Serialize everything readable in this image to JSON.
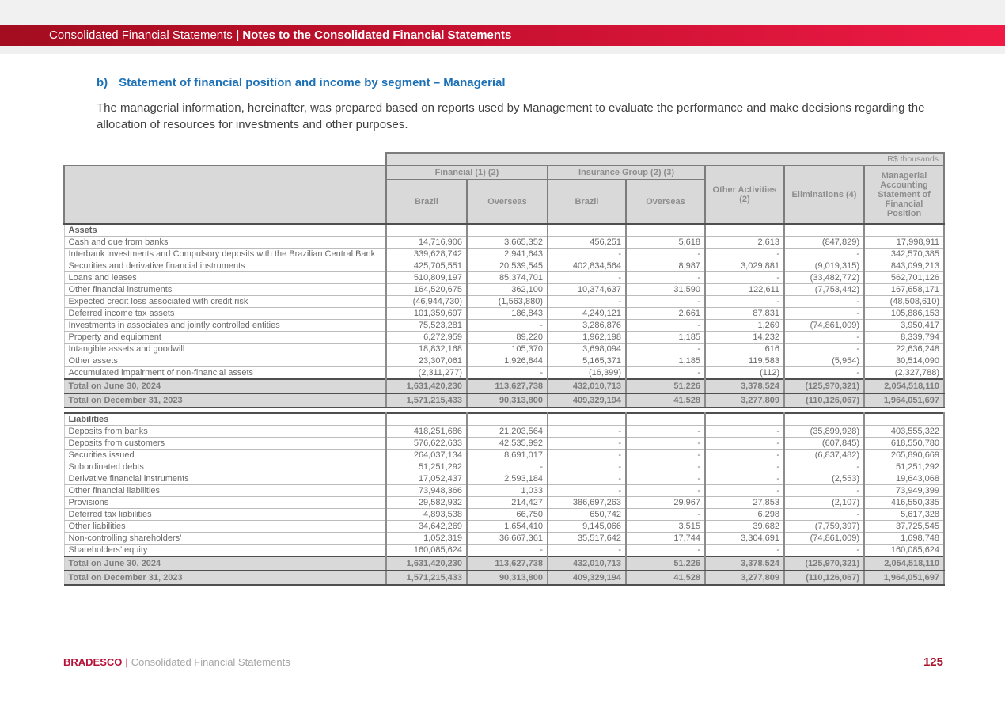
{
  "banner": {
    "left": "Consolidated Financial Statements",
    "separator": "|",
    "right": "Notes to the Consolidated Financial Statements"
  },
  "heading": {
    "prefix": "b)",
    "text": "Statement of financial position and income by segment – Managerial"
  },
  "intro": "The managerial information, hereinafter, was prepared based on reports used by Management to evaluate the performance and make decisions regarding the allocation of resources for investments and other purposes.",
  "table": {
    "units": "R$ thousands",
    "groups": [
      "Financial (1) (2)",
      "Insurance Group (2) (3)"
    ],
    "columns": [
      "Brazil",
      "Overseas",
      "Brazil",
      "Overseas",
      "Other Activities (2)",
      "Eliminations (4)",
      "Managerial Accounting Statement of Financial Position"
    ],
    "sections": [
      {
        "title": "Assets",
        "rows": [
          {
            "label": "Cash and due from banks",
            "values": [
              "14,716,906",
              "3,665,352",
              "456,251",
              "5,618",
              "2,613",
              "(847,829)",
              "17,998,911"
            ]
          },
          {
            "label": "Interbank investments and Compulsory deposits with the Brazilian Central Bank",
            "values": [
              "339,628,742",
              "2,941,643",
              "-",
              "-",
              "-",
              "-",
              "342,570,385"
            ]
          },
          {
            "label": "Securities and derivative financial instruments",
            "values": [
              "425,705,551",
              "20,539,545",
              "402,834,564",
              "8,987",
              "3,029,881",
              "(9,019,315)",
              "843,099,213"
            ]
          },
          {
            "label": "Loans and leases",
            "values": [
              "510,809,197",
              "85,374,701",
              "-",
              "-",
              "-",
              "(33,482,772)",
              "562,701,126"
            ]
          },
          {
            "label": "Other financial instruments",
            "values": [
              "164,520,675",
              "362,100",
              "10,374,637",
              "31,590",
              "122,611",
              "(7,753,442)",
              "167,658,171"
            ]
          },
          {
            "label": "Expected credit loss associated with credit risk",
            "values": [
              "(46,944,730)",
              "(1,563,880)",
              "-",
              "-",
              "-",
              "-",
              "(48,508,610)"
            ]
          },
          {
            "label": "Deferred income tax assets",
            "values": [
              "101,359,697",
              "186,843",
              "4,249,121",
              "2,661",
              "87,831",
              "-",
              "105,886,153"
            ]
          },
          {
            "label": "Investments in associates and jointly controlled entities",
            "values": [
              "75,523,281",
              "-",
              "3,286,876",
              "-",
              "1,269",
              "(74,861,009)",
              "3,950,417"
            ]
          },
          {
            "label": "Property and equipment",
            "values": [
              "6,272,959",
              "89,220",
              "1,962,198",
              "1,185",
              "14,232",
              "-",
              "8,339,794"
            ]
          },
          {
            "label": "Intangible assets and goodwill",
            "values": [
              "18,832,168",
              "105,370",
              "3,698,094",
              "-",
              "616",
              "-",
              "22,636,248"
            ]
          },
          {
            "label": "Other assets",
            "values": [
              "23,307,061",
              "1,926,844",
              "5,165,371",
              "1,185",
              "119,583",
              "(5,954)",
              "30,514,090"
            ]
          },
          {
            "label": "Accumulated impairment of non-financial assets",
            "values": [
              "(2,311,277)",
              "-",
              "(16,399)",
              "-",
              "(112)",
              "-",
              "(2,327,788)"
            ]
          }
        ],
        "totals": [
          {
            "label": "Total on June 30, 2024",
            "values": [
              "1,631,420,230",
              "113,627,738",
              "432,010,713",
              "51,226",
              "3,378,524",
              "(125,970,321)",
              "2,054,518,110"
            ]
          },
          {
            "label": "Total on December 31, 2023",
            "values": [
              "1,571,215,433",
              "90,313,800",
              "409,329,194",
              "41,528",
              "3,277,809",
              "(110,126,067)",
              "1,964,051,697"
            ]
          }
        ]
      },
      {
        "title": "Liabilities",
        "rows": [
          {
            "label": "Deposits from banks",
            "values": [
              "418,251,686",
              "21,203,564",
              "-",
              "-",
              "-",
              "(35,899,928)",
              "403,555,322"
            ]
          },
          {
            "label": "Deposits from customers",
            "values": [
              "576,622,633",
              "42,535,992",
              "-",
              "-",
              "-",
              "(607,845)",
              "618,550,780"
            ]
          },
          {
            "label": "Securities issued",
            "values": [
              "264,037,134",
              "8,691,017",
              "-",
              "-",
              "-",
              "(6,837,482)",
              "265,890,669"
            ]
          },
          {
            "label": "Subordinated debts",
            "values": [
              "51,251,292",
              "-",
              "-",
              "-",
              "-",
              "-",
              "51,251,292"
            ]
          },
          {
            "label": "Derivative financial instruments",
            "values": [
              "17,052,437",
              "2,593,184",
              "-",
              "-",
              "-",
              "(2,553)",
              "19,643,068"
            ]
          },
          {
            "label": "Other financial liabilities",
            "values": [
              "73,948,366",
              "1,033",
              "-",
              "-",
              "-",
              "-",
              "73,949,399"
            ]
          },
          {
            "label": "Provisions",
            "values": [
              "29,582,932",
              "214,427",
              "386,697,263",
              "29,967",
              "27,853",
              "(2,107)",
              "416,550,335"
            ]
          },
          {
            "label": "Deferred tax liabilities",
            "values": [
              "4,893,538",
              "66,750",
              "650,742",
              "-",
              "6,298",
              "-",
              "5,617,328"
            ]
          },
          {
            "label": "Other liabilities",
            "values": [
              "34,642,269",
              "1,654,410",
              "9,145,066",
              "3,515",
              "39,682",
              "(7,759,397)",
              "37,725,545"
            ]
          },
          {
            "label": "Non-controlling shareholders’",
            "values": [
              "1,052,319",
              "36,667,361",
              "35,517,642",
              "17,744",
              "3,304,691",
              "(74,861,009)",
              "1,698,748"
            ]
          },
          {
            "label": "Shareholders’ equity",
            "values": [
              "160,085,624",
              "-",
              "-",
              "-",
              "-",
              "-",
              "160,085,624"
            ]
          }
        ],
        "totals": [
          {
            "label": "Total on June 30, 2024",
            "values": [
              "1,631,420,230",
              "113,627,738",
              "432,010,713",
              "51,226",
              "3,378,524",
              "(125,970,321)",
              "2,054,518,110"
            ]
          },
          {
            "label": "Total on December 31, 2023",
            "values": [
              "1,571,215,433",
              "90,313,800",
              "409,329,194",
              "41,528",
              "3,277,809",
              "(110,126,067)",
              "1,964,051,697"
            ]
          }
        ]
      }
    ]
  },
  "footer": {
    "brand": "BRADESCO",
    "separator": "|",
    "label": "Consolidated Financial Statements",
    "page": "125"
  },
  "colors": {
    "banner_red_left": "#a30d1f",
    "banner_red_right": "#ee1a45",
    "heading_blue": "#1c70b5",
    "brand_red": "#b5123a",
    "page_number_red": "#a9122c",
    "table_header_gray": "#d9d9d9",
    "body_text_gray": "#696969"
  }
}
